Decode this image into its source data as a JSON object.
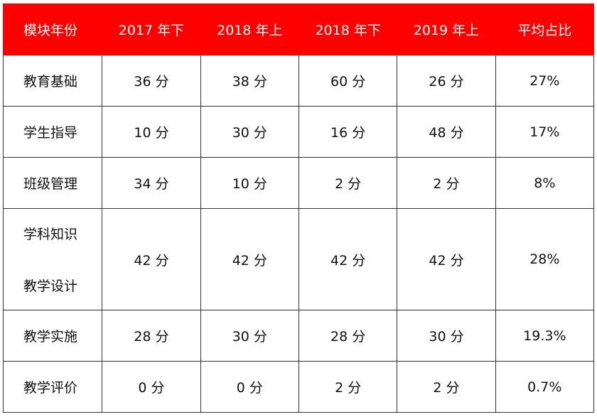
{
  "table": {
    "headers": [
      "模块年份",
      "2017 年下",
      "2018 年上",
      "2018 年下",
      "2019 年上",
      "平均占比"
    ],
    "rows": [
      {
        "module": [
          "教育基础"
        ],
        "values": [
          "36 分",
          "38 分",
          "60 分",
          "26 分",
          "27%"
        ]
      },
      {
        "module": [
          "学生指导"
        ],
        "values": [
          "10 分",
          "30 分",
          "16 分",
          "48 分",
          "17%"
        ]
      },
      {
        "module": [
          "班级管理"
        ],
        "values": [
          "34 分",
          "10 分",
          "2 分",
          "2 分",
          "8%"
        ]
      },
      {
        "module": [
          "学科知识",
          "教学设计"
        ],
        "values": [
          "42 分",
          "42 分",
          "42 分",
          "42 分",
          "28%"
        ]
      },
      {
        "module": [
          "教学实施"
        ],
        "values": [
          "28 分",
          "30 分",
          "28 分",
          "30 分",
          "19.3%"
        ]
      },
      {
        "module": [
          "教学评价"
        ],
        "values": [
          "0 分",
          "0 分",
          "2 分",
          "2 分",
          "0.7%"
        ]
      }
    ]
  },
  "colors": {
    "header_bg": "#ff0000",
    "header_text": "#ffffff",
    "border": "#333333"
  }
}
